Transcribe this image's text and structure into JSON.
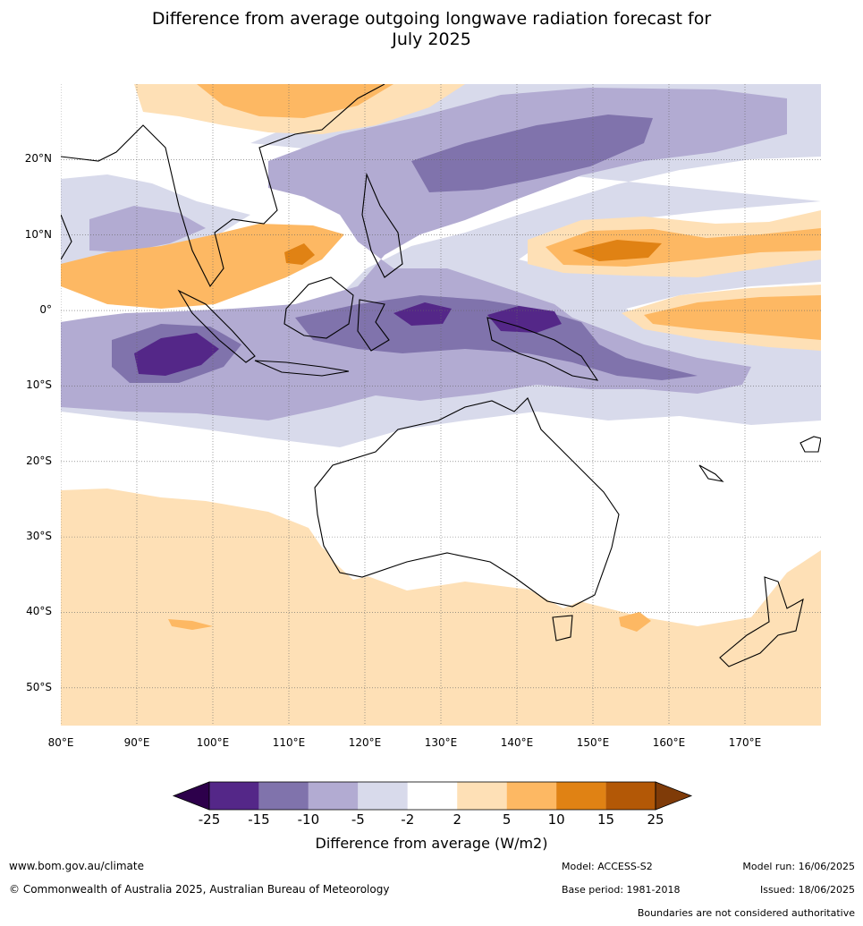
{
  "title_line1": "Difference from average outgoing longwave radiation forecast for",
  "title_line2": "July 2025",
  "map": {
    "lat_labels": [
      "20°N",
      "10°N",
      "0°",
      "10°S",
      "20°S",
      "30°S",
      "40°S",
      "50°S"
    ],
    "lat_values": [
      20,
      10,
      0,
      -10,
      -20,
      -30,
      -40,
      -50
    ],
    "lon_labels": [
      "80°E",
      "90°E",
      "100°E",
      "110°E",
      "120°E",
      "130°E",
      "140°E",
      "150°E",
      "160°E",
      "170°E"
    ],
    "lon_values": [
      80,
      90,
      100,
      110,
      120,
      130,
      140,
      150,
      160,
      170
    ],
    "lon_range": [
      80,
      180
    ],
    "lat_range": [
      -55,
      30
    ]
  },
  "legend": {
    "ticks": [
      "-25",
      "-15",
      "-10",
      "-5",
      "-2",
      "2",
      "5",
      "10",
      "15",
      "25"
    ],
    "colors": [
      "#2d004b",
      "#542788",
      "#8073ac",
      "#b2abd2",
      "#d8daeb",
      "#ffffff",
      "#fee0b6",
      "#fdb863",
      "#e08214",
      "#b35806",
      "#7f3b08"
    ],
    "title": "Difference from average (W/m2)"
  },
  "footer": {
    "website": "www.bom.gov.au/climate",
    "copyright": "© Commonwealth of Australia 2025, Australian Bureau of Meteorology",
    "model": "Model: ACCESS-S2",
    "base_period": "Base period: 1981-2018",
    "model_run": "Model run: 16/06/2025",
    "issued": "Issued: 18/06/2025",
    "disclaimer": "Boundaries are not considered authoritative"
  }
}
